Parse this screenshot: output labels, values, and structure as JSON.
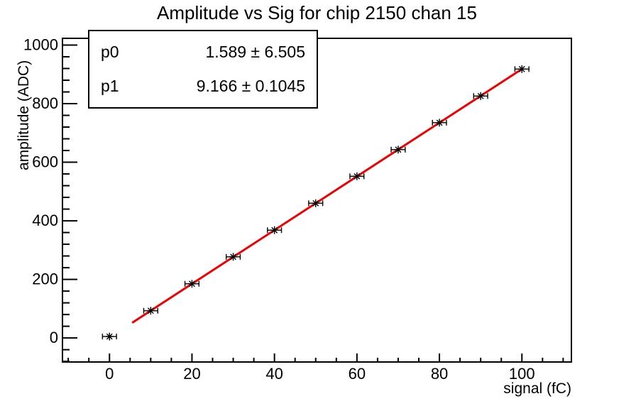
{
  "chart_data": {
    "type": "scatter",
    "title": "Amplitude vs Sig for chip 2150 chan 15",
    "xlabel": "signal (fC)",
    "ylabel": "amplitude (ADC)",
    "x": [
      0,
      10,
      20,
      30,
      40,
      50,
      60,
      70,
      80,
      90,
      100
    ],
    "y": [
      5,
      93,
      185,
      277,
      368,
      460,
      552,
      643,
      735,
      826,
      918
    ],
    "xerr": 1.7,
    "marker_style": "asterisk",
    "fit_line": {
      "p0": 1.589,
      "p1": 9.166,
      "x_start": 5.5,
      "x_end": 100
    },
    "xlim": [
      -11.4,
      112
    ],
    "ylim": [
      -82,
      1023
    ],
    "x_major_ticks": [
      0,
      20,
      40,
      60,
      80,
      100
    ],
    "x_tick_labels": [
      "0",
      "20",
      "40",
      "60",
      "80",
      "100"
    ],
    "x_minor_step": 5,
    "y_major_ticks": [
      0,
      200,
      400,
      600,
      800,
      1000
    ],
    "y_tick_labels": [
      "0",
      "200",
      "400",
      "600",
      "800",
      "1000"
    ],
    "y_minor_step": 40,
    "grid": false,
    "legend": "none"
  },
  "stats_box": {
    "rows": [
      {
        "param": "p0",
        "value": "1.589 ± 6.505"
      },
      {
        "param": "p1",
        "value": "9.166 ± 0.1045"
      }
    ]
  },
  "colors": {
    "background": "#ffffff",
    "frame": "#000000",
    "marker": "#000000",
    "fit_line": "#f00000",
    "text": "#000000"
  }
}
